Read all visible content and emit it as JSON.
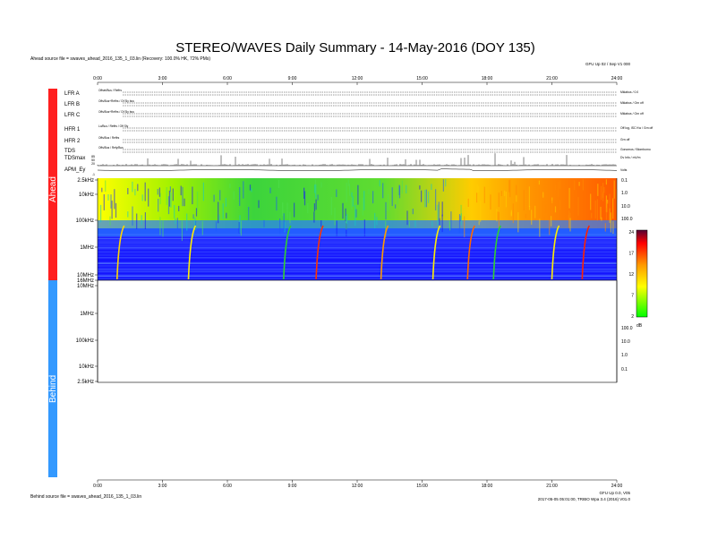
{
  "title": "STEREO/WAVES Daily Summary - 14-May-2016 (DOY 135)",
  "ahead_source": "Ahead source file = swaves_ahead_2016_135_1_03.lin (Recovery: 100.0% HK,  72% PMs)",
  "behind_source": "Behind source file = swaves_ahead_2016_135_1_03.lin",
  "top_right_note": "GFU Up 02 / Sep V1 000",
  "bottom_right_note_1": "GFU Up 0.0, V05",
  "bottom_right_note_2": "2017-05-05 05:01:00, TRIBO Wpa 3.4 (2016) V01.0",
  "side_labels": {
    "ahead": "Ahead",
    "behind": "Behind"
  },
  "time_ticks": [
    "0:00",
    "3:00",
    "6:00",
    "9:00",
    "12:00",
    "15:00",
    "18:00",
    "21:00",
    "24:00"
  ],
  "rows": [
    {
      "label": "LFR A",
      "left_note": "Offset/Bus / Reffrs",
      "right_note": "Mklabus / 0.0"
    },
    {
      "label": "LFR B",
      "left_note": "Offs/Bus+Reffrs / Of Sly bus",
      "right_note": "Mklabus / Grn off"
    },
    {
      "label": "LFR C",
      "left_note": "Offs/Bus+Reffrs / Of Sly bus",
      "right_note": "Mklabus / Grn off"
    },
    {
      "label": "HFR 1",
      "left_note": "Lo/Bus / Reffrs / Off Sly",
      "right_note": "Off log, ISC Kw / Grn off"
    },
    {
      "label": "HFR 2",
      "left_note": "Offs/Bus / Reffrs",
      "right_note": "Grn off"
    },
    {
      "label": "TDS",
      "left_note": "Offs/Bus / Refy/Bus",
      "right_note": "Gonomos / Blombomo"
    }
  ],
  "tdsmax": {
    "label": "TDSmax",
    "ticks": [
      "85",
      "50",
      "20"
    ],
    "right_note": "Dv Info / mV/m"
  },
  "apm": {
    "label": "APM_Ey",
    "tick": "-1",
    "right_note": "Volts"
  },
  "freq_ticks": [
    "2.5kHz",
    "10kHz",
    "100kHz",
    "1MHz",
    "10MHz",
    "16MHz"
  ],
  "behind_freq_ticks": [
    "10MHz",
    "1MHz",
    "100kHz",
    "10kHz",
    "2.5kHz"
  ],
  "sfu_ticks": [
    "0.1",
    "1.0",
    "10.0",
    "100.0"
  ],
  "colorbar": {
    "ticks": [
      "24",
      "17",
      "12",
      "7",
      "2"
    ],
    "unit": "dB"
  },
  "chart_data": {
    "type": "heatmap",
    "title": "STEREO/WAVES Daily Summary - 14-May-2016 (DOY 135)",
    "x_range_hours": [
      0,
      24
    ],
    "y_range_hz": [
      2500,
      16000000
    ],
    "y_scale": "log",
    "colorbar_range_db": [
      2,
      24
    ],
    "colors": {
      "low": "#1414ff",
      "mid": "#14d214",
      "high": "#ff0000",
      "ahead_bar": "#ff1f1f",
      "behind_bar": "#3399ff"
    }
  }
}
